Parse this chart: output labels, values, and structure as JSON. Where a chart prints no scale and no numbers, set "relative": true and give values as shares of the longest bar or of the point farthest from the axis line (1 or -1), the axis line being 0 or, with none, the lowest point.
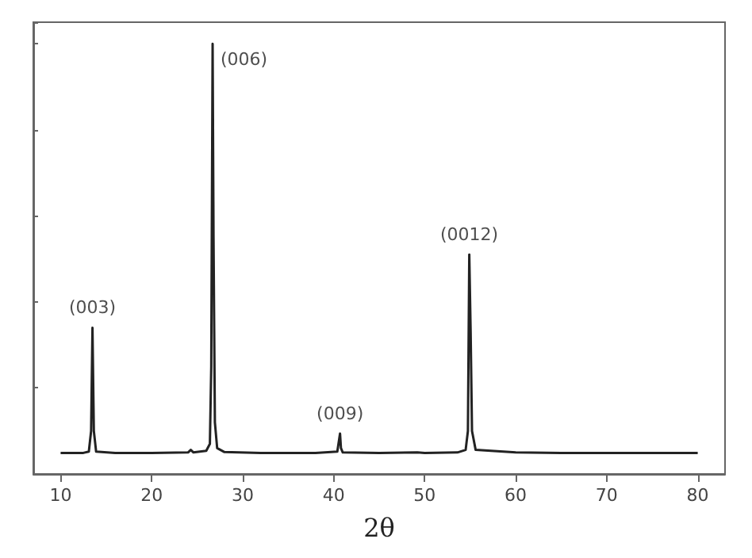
{
  "chart_data": {
    "type": "line",
    "xlabel": "2θ",
    "relative": true,
    "xlim": [
      7,
      83
    ],
    "xticks": [
      10,
      20,
      30,
      40,
      50,
      60,
      70,
      80
    ],
    "grid": false,
    "marker": "none",
    "line_style": "solid",
    "series": [
      {
        "color": "#222222",
        "x": [
          10,
          12.5,
          13.1,
          13.35,
          13.5,
          13.65,
          13.9,
          16,
          20,
          24,
          24.3,
          24.6,
          26,
          26.4,
          26.55,
          26.7,
          26.8,
          26.95,
          27.2,
          28,
          32,
          38,
          40.4,
          40.6,
          40.7,
          40.8,
          41,
          45,
          49.2,
          50,
          53.6,
          54.5,
          54.75,
          54.9,
          55.05,
          55.2,
          55.6,
          60,
          65,
          70,
          75,
          80
        ],
        "values": [
          0.049,
          0.049,
          0.052,
          0.1,
          0.34,
          0.1,
          0.052,
          0.049,
          0.049,
          0.05,
          0.056,
          0.05,
          0.054,
          0.07,
          0.25,
          1,
          0.55,
          0.12,
          0.06,
          0.051,
          0.049,
          0.049,
          0.052,
          0.08,
          0.094,
          0.06,
          0.05,
          0.049,
          0.05,
          0.049,
          0.05,
          0.056,
          0.1,
          0.51,
          0.33,
          0.1,
          0.056,
          0.05,
          0.049,
          0.049,
          0.049,
          0.049
        ]
      }
    ],
    "annotations": [
      {
        "text": "(003)",
        "x": 13.5,
        "y": 0.34
      },
      {
        "text": "(006)",
        "x": 26.7,
        "y": 1
      },
      {
        "text": "(009)",
        "x": 40.7,
        "y": 0.094
      },
      {
        "text": "(0012)",
        "x": 54.9,
        "y": 0.51
      }
    ]
  }
}
